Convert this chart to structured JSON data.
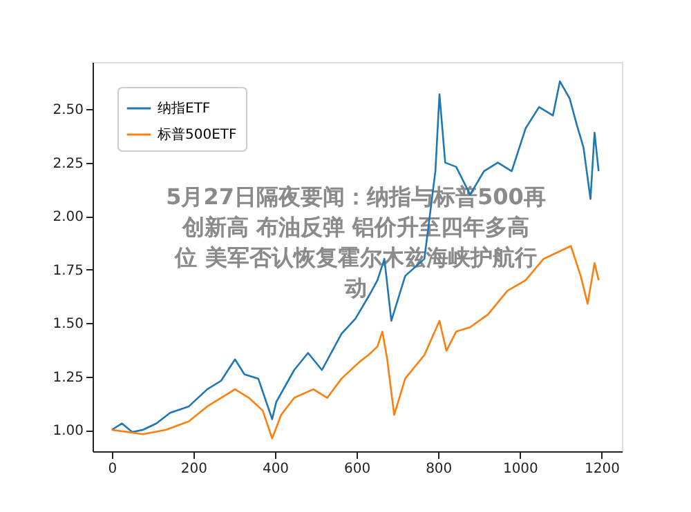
{
  "chart_data": {
    "type": "line",
    "annotations": [
      "5月27日隔夜要闻：纳指与标普500再创新高 布油反弹 铝价升至四年多高位 美军否认恢复霍尔木兹海峡护航行动"
    ],
    "series": [
      {
        "name": "纳指ETF",
        "color": "#1f77b4",
        "x": [
          0,
          25,
          50,
          76,
          109,
          143,
          189,
          234,
          268,
          302,
          325,
          359,
          393,
          403,
          447,
          481,
          515,
          563,
          597,
          631,
          651,
          668,
          685,
          719,
          766,
          793,
          803,
          817,
          844,
          878,
          912,
          946,
          980,
          1014,
          1047,
          1081,
          1098,
          1122,
          1139,
          1156,
          1173,
          1183,
          1193
        ],
        "values": [
          1.0,
          1.03,
          0.99,
          1.0,
          1.03,
          1.08,
          1.11,
          1.19,
          1.23,
          1.33,
          1.26,
          1.24,
          1.05,
          1.13,
          1.28,
          1.36,
          1.28,
          1.45,
          1.52,
          1.63,
          1.7,
          1.8,
          1.51,
          1.72,
          1.8,
          2.21,
          2.57,
          2.25,
          2.23,
          2.1,
          2.21,
          2.25,
          2.21,
          2.41,
          2.51,
          2.47,
          2.63,
          2.55,
          2.43,
          2.32,
          2.08,
          2.39,
          2.21
        ]
      },
      {
        "name": "标普500ETF",
        "color": "#ff7f0e",
        "x": [
          0,
          40,
          76,
          132,
          189,
          234,
          268,
          302,
          336,
          370,
          393,
          415,
          447,
          494,
          528,
          563,
          608,
          629,
          651,
          663,
          675,
          692,
          719,
          766,
          803,
          820,
          844,
          878,
          922,
          969,
          1014,
          1058,
          1092,
          1125,
          1149,
          1166,
          1183,
          1193
        ],
        "values": [
          1.0,
          0.99,
          0.98,
          1.0,
          1.04,
          1.11,
          1.15,
          1.19,
          1.15,
          1.09,
          0.96,
          1.07,
          1.15,
          1.19,
          1.15,
          1.24,
          1.32,
          1.35,
          1.39,
          1.46,
          1.33,
          1.07,
          1.24,
          1.35,
          1.51,
          1.37,
          1.46,
          1.48,
          1.54,
          1.65,
          1.7,
          1.8,
          1.83,
          1.86,
          1.72,
          1.59,
          1.78,
          1.7
        ]
      }
    ],
    "xlim": [
      -47,
      1250
    ],
    "xticks": [
      0,
      200,
      400,
      600,
      800,
      1000,
      1200
    ],
    "ylim": [
      0.9,
      2.72
    ],
    "yticks": [
      {
        "value": 1.0,
        "label": "1.00"
      },
      {
        "value": 1.25,
        "label": "1.25"
      },
      {
        "value": 1.5,
        "label": "1.50"
      },
      {
        "value": 1.75,
        "label": "1.75"
      },
      {
        "value": 2.0,
        "label": "2.00"
      },
      {
        "value": 2.25,
        "label": "2.25"
      },
      {
        "value": 2.5,
        "label": "2.50"
      }
    ],
    "grid": false,
    "legend": "top left",
    "line_style": "solid",
    "marker": "none"
  }
}
